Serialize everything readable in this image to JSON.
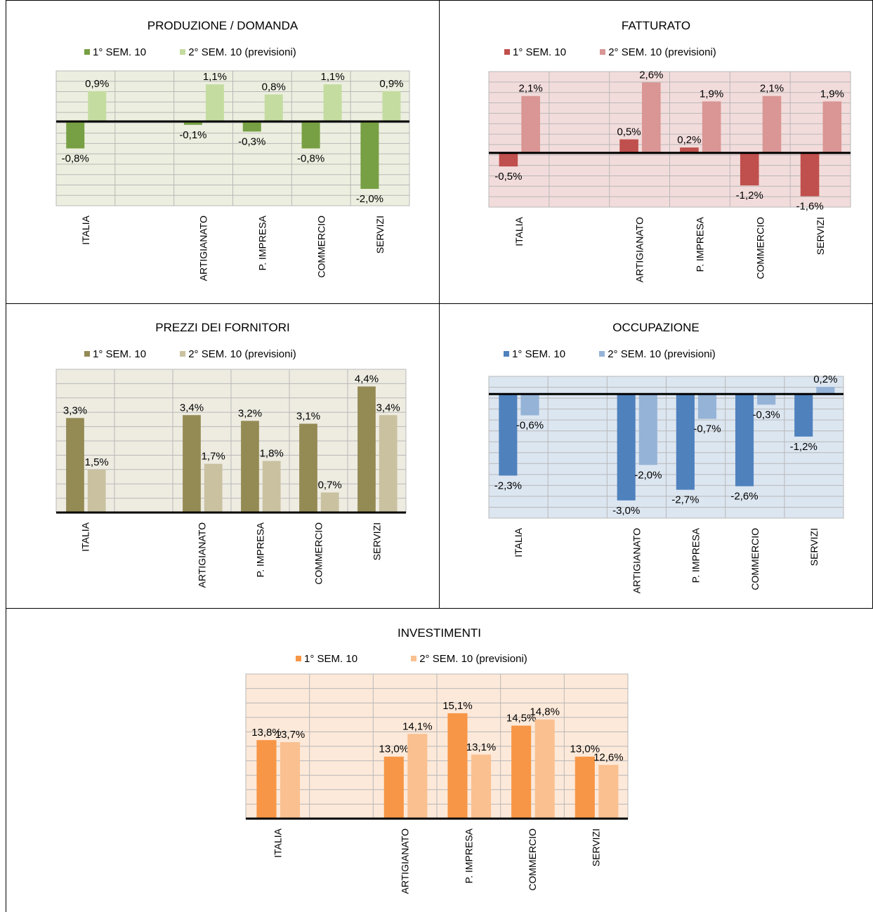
{
  "chart_data": [
    {
      "id": "produzione",
      "type": "bar",
      "title": "PRODUZIONE / DOMANDA",
      "categories": [
        "ITALIA",
        "",
        "ARTIGIANATO",
        "P. IMPRESA",
        "COMMERCIO",
        "SERVIZI"
      ],
      "series": [
        {
          "name": "1° SEM. 10",
          "values": [
            -0.8,
            null,
            -0.1,
            -0.3,
            -0.8,
            -2.0
          ],
          "labels": [
            "-0,8%",
            "",
            "-0,1%",
            "-0,3%",
            "-0,8%",
            "-2,0%"
          ]
        },
        {
          "name": "2° SEM. 10  (previsioni)",
          "values": [
            0.9,
            null,
            1.1,
            0.8,
            1.1,
            0.9
          ],
          "labels": [
            "0,9%",
            "",
            "1,1%",
            "0,8%",
            "1,1%",
            "0,9%"
          ]
        }
      ],
      "ylim": [
        -2.5,
        1.5
      ],
      "grid": true,
      "colors": {
        "s1": "#77a044",
        "s2": "#c4dca0",
        "plot_bg": "#ecefdf",
        "grid": "#b8b8b8"
      }
    },
    {
      "id": "fatturato",
      "type": "bar",
      "title": "FATTURATO",
      "categories": [
        "ITALIA",
        "",
        "ARTIGIANATO",
        "P. IMPRESA",
        "COMMERCIO",
        "SERVIZI"
      ],
      "series": [
        {
          "name": "1° SEM. 10",
          "values": [
            -0.5,
            null,
            0.5,
            0.2,
            -1.2,
            -1.6
          ],
          "labels": [
            "-0,5%",
            "",
            "0,5%",
            "0,2%",
            "-1,2%",
            "-1,6%"
          ]
        },
        {
          "name": "2° SEM. 10  (previsioni)",
          "values": [
            2.1,
            null,
            2.6,
            1.9,
            2.1,
            1.9
          ],
          "labels": [
            "2,1%",
            "",
            "2,6%",
            "1,9%",
            "2,1%",
            "1,9%"
          ]
        }
      ],
      "ylim": [
        -2.0,
        3.0
      ],
      "grid": true,
      "colors": {
        "s1": "#c0504d",
        "s2": "#d99694",
        "plot_bg": "#f2dcdb",
        "grid": "#b8b8b8"
      }
    },
    {
      "id": "prezzi",
      "type": "bar",
      "title": "PREZZI DEI FORNITORI",
      "categories": [
        "ITALIA",
        "",
        "ARTIGIANATO",
        "P. IMPRESA",
        "COMMERCIO",
        "SERVIZI"
      ],
      "series": [
        {
          "name": "1° SEM. 10",
          "values": [
            3.3,
            null,
            3.4,
            3.2,
            3.1,
            4.4
          ],
          "labels": [
            "3,3%",
            "",
            "3,4%",
            "3,2%",
            "3,1%",
            "4,4%"
          ]
        },
        {
          "name": "2° SEM. 10  (previsioni)",
          "values": [
            1.5,
            null,
            1.7,
            1.8,
            0.7,
            3.4
          ],
          "labels": [
            "1,5%",
            "",
            "1,7%",
            "1,8%",
            "0,7%",
            "3,4%"
          ]
        }
      ],
      "ylim": [
        0,
        5.0
      ],
      "grid": true,
      "colors": {
        "s1": "#948a54",
        "s2": "#c9c1a0",
        "plot_bg": "#eeece1",
        "grid": "#b8b8b8"
      }
    },
    {
      "id": "occupazione",
      "type": "bar",
      "title": "OCCUPAZIONE",
      "categories": [
        "ITALIA",
        "",
        "ARTIGIANATO",
        "P. IMPRESA",
        "COMMERCIO",
        "SERVIZI"
      ],
      "series": [
        {
          "name": "1° SEM. 10",
          "values": [
            -2.3,
            null,
            -3.0,
            -2.7,
            -2.6,
            -1.2
          ],
          "labels": [
            "-2,3%",
            "",
            "-3,0%",
            "-2,7%",
            "-2,6%",
            "-1,2%"
          ]
        },
        {
          "name": "2° SEM. 10  (previsioni)",
          "values": [
            -0.6,
            null,
            -2.0,
            -0.7,
            -0.3,
            0.2
          ],
          "labels": [
            "-0,6%",
            "",
            "-2,0%",
            "-0,7%",
            "-0,3%",
            "0,2%"
          ]
        }
      ],
      "ylim": [
        -3.5,
        0.5
      ],
      "grid": true,
      "colors": {
        "s1": "#4f81bd",
        "s2": "#95b3d7",
        "plot_bg": "#dce6f1",
        "grid": "#b8b8b8"
      }
    },
    {
      "id": "investimenti",
      "type": "bar",
      "title": "INVESTIMENTI",
      "categories": [
        "ITALIA",
        "",
        "ARTIGIANATO",
        "P. IMPRESA",
        "COMMERCIO",
        "SERVIZI"
      ],
      "series": [
        {
          "name": "1° SEM. 10",
          "values": [
            13.8,
            null,
            13.0,
            15.1,
            14.5,
            13.0
          ],
          "labels": [
            "13,8%",
            "",
            "13,0%",
            "15,1%",
            "14,5%",
            "13,0%"
          ]
        },
        {
          "name": "2° SEM. 10  (previsioni)",
          "values": [
            13.7,
            null,
            14.1,
            13.1,
            14.8,
            12.6
          ],
          "labels": [
            "13,7%",
            "",
            "14,1%",
            "13,1%",
            "14,8%",
            "12,6%"
          ]
        }
      ],
      "ylim": [
        10,
        17
      ],
      "grid": true,
      "colors": {
        "s1": "#f79646",
        "s2": "#fac090",
        "plot_bg": "#fde9d9",
        "grid": "#b8b8b8"
      }
    }
  ]
}
